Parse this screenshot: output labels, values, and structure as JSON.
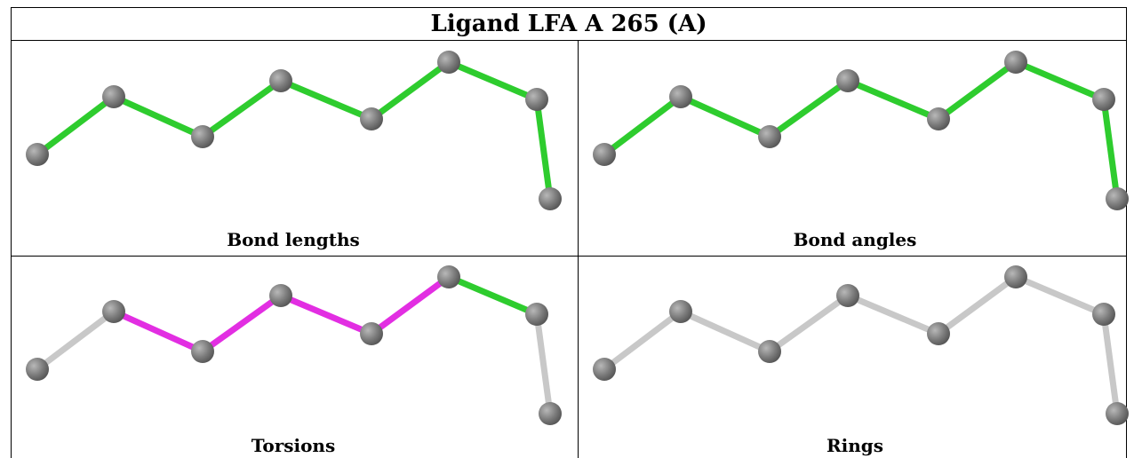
{
  "title": "Ligand LFA A 265 (A)",
  "panels": [
    {
      "caption": "Bond lengths",
      "bond_colors": [
        "green",
        "green",
        "green",
        "green",
        "green",
        "green",
        "green"
      ]
    },
    {
      "caption": "Bond angles",
      "bond_colors": [
        "green",
        "green",
        "green",
        "green",
        "green",
        "green",
        "green"
      ]
    },
    {
      "caption": "Torsions",
      "bond_colors": [
        "grey",
        "magenta",
        "magenta",
        "magenta",
        "magenta",
        "green",
        "grey"
      ]
    },
    {
      "caption": "Rings",
      "bond_colors": [
        "grey",
        "grey",
        "grey",
        "grey",
        "grey",
        "grey",
        "grey"
      ]
    }
  ],
  "colors": {
    "green": "#2ecc2e",
    "magenta": "#e22ee2",
    "grey": "#c8c8c8",
    "atom": "#7a7a7a"
  }
}
